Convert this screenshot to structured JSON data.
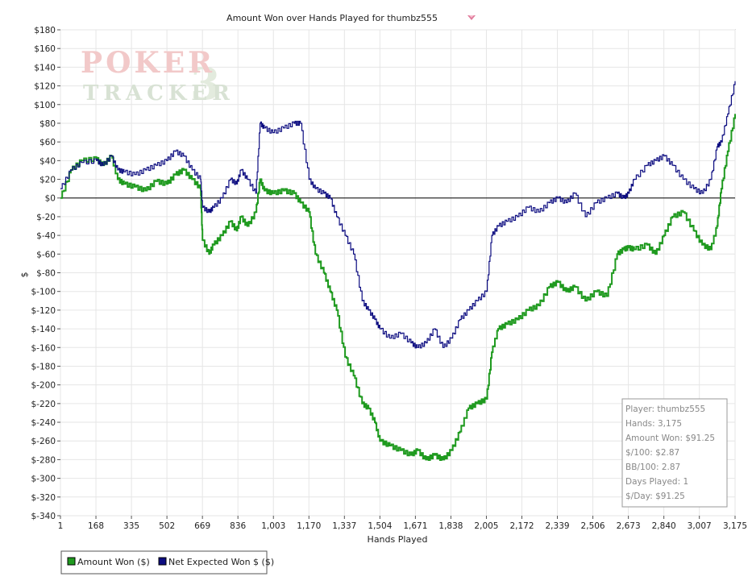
{
  "chart_data": {
    "type": "line",
    "title": "Amount Won over Hands Played for thumbz555",
    "xlabel": "Hands Played",
    "ylabel": "$",
    "xlim": [
      1,
      3175
    ],
    "ylim": [
      -340,
      180
    ],
    "x_ticks": [
      "1",
      "168",
      "335",
      "502",
      "669",
      "836",
      "1,003",
      "1,170",
      "1,337",
      "1,504",
      "1,671",
      "1,838",
      "2,005",
      "2,172",
      "2,339",
      "2,506",
      "2,673",
      "2,840",
      "3,007",
      "3,175"
    ],
    "y_ticks": [
      "$180",
      "$160",
      "$140",
      "$120",
      "$100",
      "$80",
      "$60",
      "$40",
      "$20",
      "$0",
      "$-20",
      "$-40",
      "$-60",
      "$-80",
      "$-100",
      "$-120",
      "$-140",
      "$-160",
      "$-180",
      "$-200",
      "$-220",
      "$-240",
      "$-260",
      "$-280",
      "$-300",
      "$-320",
      "$-340"
    ],
    "y_tick_values": [
      180,
      160,
      140,
      120,
      100,
      80,
      60,
      40,
      20,
      0,
      -20,
      -40,
      -60,
      -80,
      -100,
      -120,
      -140,
      -160,
      -180,
      -200,
      -220,
      -240,
      -260,
      -280,
      -300,
      -320,
      -340
    ],
    "grid": true,
    "legend_position": "bottom-left",
    "series": [
      {
        "name": "Amount Won ($)",
        "color": "#1f9a1f",
        "x": [
          1,
          50,
          100,
          170,
          200,
          240,
          270,
          300,
          350,
          400,
          450,
          500,
          540,
          580,
          620,
          660,
          669,
          700,
          720,
          760,
          800,
          830,
          850,
          880,
          920,
          940,
          960,
          1000,
          1050,
          1100,
          1130,
          1170,
          1200,
          1240,
          1270,
          1300,
          1340,
          1380,
          1420,
          1450,
          1480,
          1504,
          1550,
          1600,
          1650,
          1680,
          1720,
          1760,
          1800,
          1840,
          1880,
          1920,
          1960,
          2005,
          2030,
          2060,
          2100,
          2150,
          2200,
          2250,
          2300,
          2340,
          2380,
          2420,
          2470,
          2520,
          2570,
          2620,
          2650,
          2673,
          2700,
          2760,
          2800,
          2840,
          2880,
          2930,
          2980,
          3020,
          3060,
          3090,
          3110,
          3140,
          3175
        ],
        "y": [
          0,
          30,
          40,
          42,
          35,
          45,
          20,
          15,
          12,
          8,
          18,
          15,
          25,
          30,
          20,
          10,
          -45,
          -60,
          -50,
          -40,
          -25,
          -35,
          -20,
          -30,
          -15,
          20,
          8,
          5,
          8,
          5,
          -5,
          -15,
          -60,
          -80,
          -100,
          -120,
          -170,
          -190,
          -220,
          -225,
          -240,
          -260,
          -265,
          -270,
          -275,
          -270,
          -280,
          -275,
          -280,
          -270,
          -250,
          -225,
          -220,
          -215,
          -165,
          -140,
          -135,
          -130,
          -120,
          -115,
          -95,
          -90,
          -100,
          -95,
          -110,
          -100,
          -105,
          -60,
          -55,
          -53,
          -55,
          -50,
          -60,
          -40,
          -20,
          -15,
          -35,
          -50,
          -55,
          -30,
          10,
          50,
          90
        ]
      },
      {
        "name": "Net Expected Won $ ($)",
        "color": "#0c0c80",
        "x": [
          1,
          50,
          100,
          170,
          200,
          240,
          270,
          300,
          350,
          400,
          450,
          500,
          540,
          580,
          620,
          660,
          669,
          700,
          720,
          760,
          800,
          830,
          850,
          880,
          920,
          940,
          960,
          1000,
          1050,
          1100,
          1130,
          1170,
          1200,
          1240,
          1270,
          1300,
          1340,
          1380,
          1420,
          1450,
          1480,
          1504,
          1550,
          1600,
          1650,
          1680,
          1720,
          1760,
          1800,
          1840,
          1880,
          1920,
          1960,
          2005,
          2030,
          2060,
          2100,
          2150,
          2200,
          2250,
          2300,
          2340,
          2380,
          2420,
          2470,
          2520,
          2570,
          2620,
          2650,
          2673,
          2700,
          2760,
          2800,
          2840,
          2880,
          2930,
          2980,
          3020,
          3060,
          3090,
          3110,
          3140,
          3175
        ],
        "y": [
          10,
          30,
          38,
          40,
          35,
          45,
          30,
          28,
          25,
          30,
          35,
          40,
          50,
          45,
          30,
          20,
          -10,
          -15,
          -10,
          0,
          20,
          15,
          30,
          20,
          5,
          80,
          75,
          70,
          75,
          80,
          80,
          20,
          10,
          5,
          0,
          -20,
          -40,
          -60,
          -110,
          -120,
          -130,
          -140,
          -150,
          -145,
          -155,
          -160,
          -155,
          -140,
          -160,
          -150,
          -130,
          -120,
          -110,
          -100,
          -40,
          -30,
          -25,
          -20,
          -10,
          -15,
          -5,
          0,
          -5,
          5,
          -20,
          -5,
          0,
          5,
          0,
          5,
          20,
          35,
          40,
          45,
          35,
          20,
          10,
          5,
          20,
          55,
          60,
          90,
          125
        ]
      }
    ]
  },
  "watermark": {
    "line1": "POKER",
    "line2": "TRACKER",
    "mark": "3"
  },
  "info_box": [
    "Player: thumbz555",
    "Hands: 3,175",
    "Amount Won: $91.25",
    "$/100: $2.87",
    "BB/100: 2.87",
    "Days Played: 1",
    "$/Day: $91.25"
  ],
  "legend": {
    "items": [
      "Amount Won ($)",
      "Net Expected Won $ ($)"
    ]
  },
  "title_icon": "pokertracker-logo-icon"
}
